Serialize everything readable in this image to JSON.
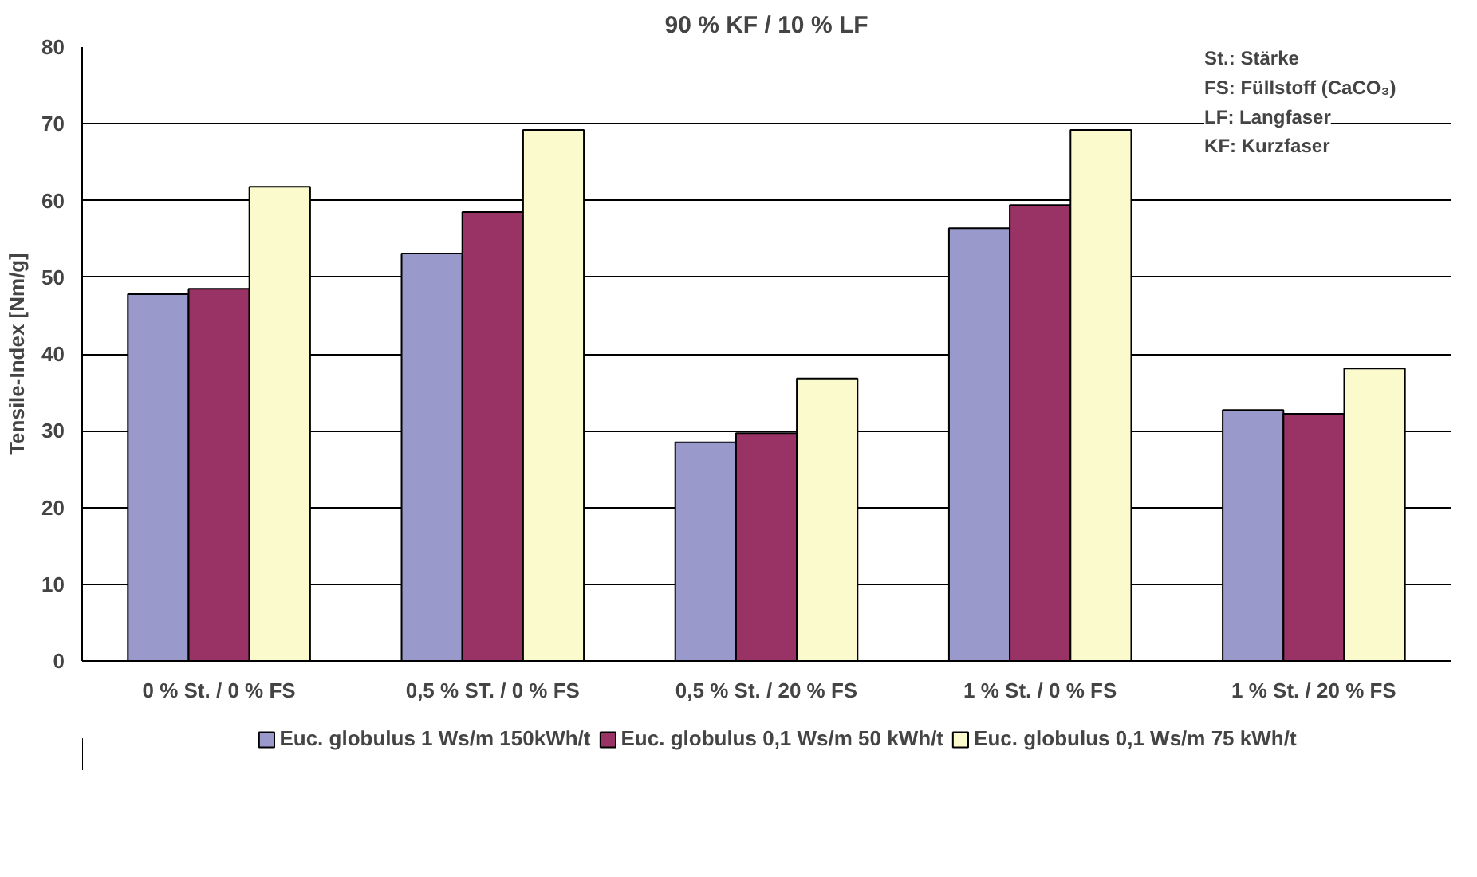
{
  "chart_data": {
    "type": "bar",
    "title": "90 % KF / 10 % LF",
    "ylabel": "Tensile-Index [Nm/g]",
    "categories": [
      "0 % St. / 0 % FS",
      "0,5 % ST. / 0 % FS",
      "0,5 % St. / 20 % FS",
      "1 % St. / 0 % FS",
      "1 % St. / 20 % FS"
    ],
    "series": [
      {
        "name": "Euc. globulus 1 Ws/m 150kWh/t",
        "color": "#9999cc",
        "values": [
          47.8,
          53.1,
          28.5,
          56.4,
          32.7
        ]
      },
      {
        "name": "Euc. globulus 0,1 Ws/m 50 kWh/t",
        "color": "#993366",
        "values": [
          48.5,
          58.5,
          29.7,
          59.4,
          32.2
        ]
      },
      {
        "name": "Euc. globulus 0,1 Ws/m 75 kWh/t",
        "color": "#fafacc",
        "values": [
          61.8,
          69.2,
          36.8,
          69.2,
          38.1
        ]
      }
    ],
    "ylim": [
      0,
      80
    ],
    "yticks": [
      0,
      10,
      20,
      30,
      40,
      50,
      60,
      70,
      80
    ],
    "grid": "y",
    "legend": "bottom",
    "annotations": [
      "St.: Stärke",
      "FS: Füllstoff (CaCO₃)",
      "LF: Langfaser",
      "KF: Kurzfaser"
    ]
  }
}
